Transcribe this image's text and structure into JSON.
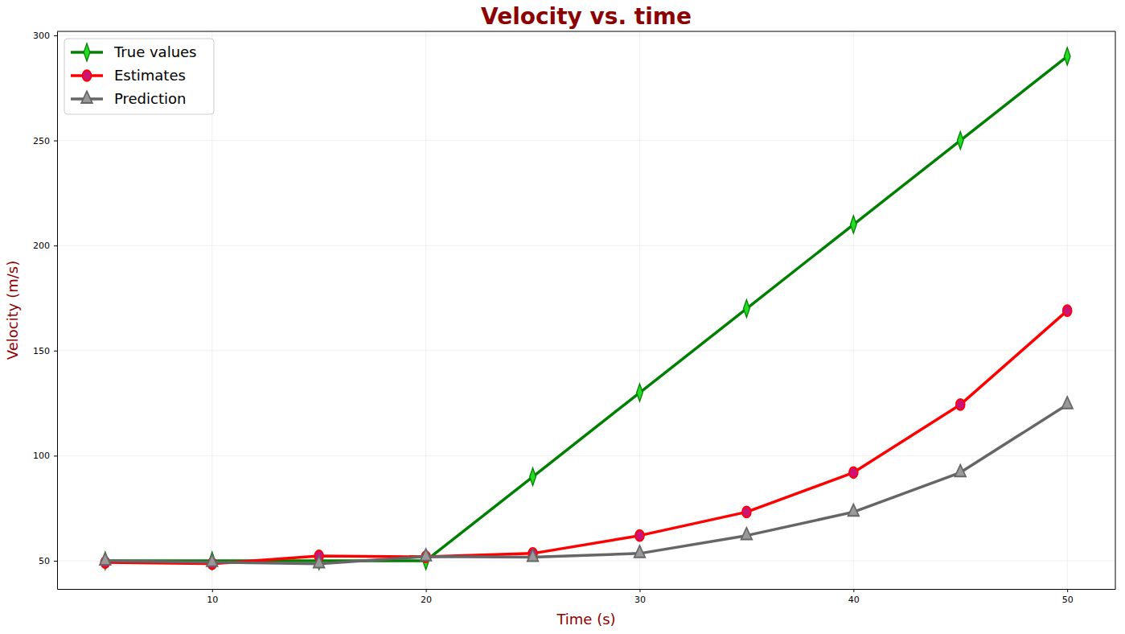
{
  "chart_data": {
    "type": "line",
    "title": "Velocity vs. time",
    "x_label": "Time (s)",
    "y_label": "Velocity (m/s)",
    "x": [
      5,
      10,
      15,
      20,
      25,
      30,
      35,
      40,
      45,
      50
    ],
    "series": [
      {
        "name": "True values",
        "color": "#008000",
        "marker": "diamond",
        "values": [
          50,
          50,
          50,
          50,
          90,
          130,
          170,
          210,
          250,
          290
        ]
      },
      {
        "name": "Estimates",
        "color": "#ff0000",
        "marker": "circle",
        "values": [
          49.2,
          48.6,
          52.3,
          51.9,
          53.5,
          62,
          73.2,
          92,
          124.3,
          169
        ]
      },
      {
        "name": "Prediction",
        "color": "#666666",
        "marker": "triangle",
        "values": [
          50,
          49.3,
          48.6,
          52,
          51.7,
          53.5,
          62,
          73.2,
          92,
          124.3
        ]
      }
    ],
    "xlim": [
      2.75,
      52.25
    ],
    "xticks": [
      10,
      20,
      30,
      40,
      50
    ],
    "ylim": [
      36.6,
      301.9
    ],
    "yticks": [
      50,
      100,
      150,
      200,
      250,
      300
    ],
    "grid": true,
    "legend": "upper left"
  }
}
